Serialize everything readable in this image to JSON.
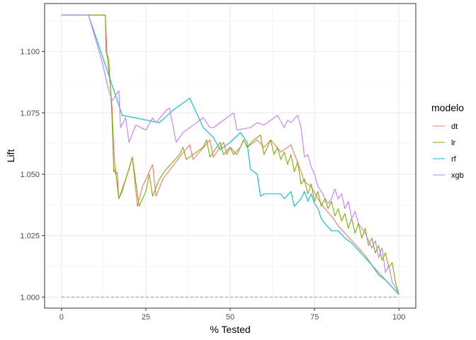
{
  "chart_data": {
    "type": "line",
    "title": "",
    "xlabel": "% Tested",
    "ylabel": "Lift",
    "xlim": [
      -5,
      105
    ],
    "ylim": [
      0.9955,
      1.1195
    ],
    "x_ticks": [
      0,
      25,
      50,
      75,
      100
    ],
    "x_tick_labels": [
      "0",
      "25",
      "50",
      "75",
      "100"
    ],
    "y_ticks": [
      1.0,
      1.025,
      1.05,
      1.075,
      1.1
    ],
    "y_tick_labels": [
      "1.000",
      "1.025",
      "1.050",
      "1.075",
      "1.100"
    ],
    "grid": true,
    "legend": {
      "title": "modelo",
      "position": "right"
    },
    "reference_line": {
      "y": 1.0,
      "style": "dashed",
      "color": "#999999"
    },
    "series": [
      {
        "name": "dt",
        "color": "#F8766D",
        "points": [
          [
            0,
            1.1148
          ],
          [
            13,
            1.1148
          ],
          [
            13.5,
            1.099
          ],
          [
            14,
            1.097
          ],
          [
            14.5,
            1.085
          ],
          [
            15,
            1.077
          ],
          [
            15.5,
            1.06
          ],
          [
            16,
            1.05
          ],
          [
            16.5,
            1.051
          ],
          [
            17,
            1.04
          ],
          [
            18,
            1.043
          ],
          [
            21,
            1.057
          ],
          [
            22.5,
            1.037
          ],
          [
            24,
            1.045
          ],
          [
            27,
            1.054
          ],
          [
            28,
            1.041
          ],
          [
            30,
            1.048
          ],
          [
            35,
            1.057
          ],
          [
            38,
            1.062
          ],
          [
            39,
            1.056
          ],
          [
            44,
            1.064
          ],
          [
            45,
            1.057
          ],
          [
            48,
            1.063
          ],
          [
            49,
            1.058
          ],
          [
            50,
            1.061
          ],
          [
            52,
            1.058
          ],
          [
            54,
            1.064
          ],
          [
            55,
            1.061
          ],
          [
            58,
            1.064
          ],
          [
            60,
            1.061
          ],
          [
            62,
            1.064
          ],
          [
            65,
            1.059
          ],
          [
            68,
            1.062
          ],
          [
            71,
            1.051
          ],
          [
            72,
            1.047
          ],
          [
            74,
            1.045
          ],
          [
            76,
            1.04
          ],
          [
            78,
            1.036
          ],
          [
            80,
            1.033
          ],
          [
            82,
            1.029
          ],
          [
            84,
            1.026
          ],
          [
            86,
            1.023
          ],
          [
            88,
            1.02
          ],
          [
            90,
            1.017
          ],
          [
            92,
            1.013
          ],
          [
            94,
            1.01
          ],
          [
            96,
            1.007
          ],
          [
            98,
            1.004
          ],
          [
            100,
            1.001
          ]
        ]
      },
      {
        "name": "lr",
        "color": "#7CAE00",
        "points": [
          [
            0,
            1.1148
          ],
          [
            13,
            1.1148
          ],
          [
            13.2,
            1.1
          ],
          [
            13.7,
            1.097
          ],
          [
            14,
            1.092
          ],
          [
            14.5,
            1.086
          ],
          [
            15,
            1.072
          ],
          [
            15.5,
            1.051
          ],
          [
            16,
            1.052
          ],
          [
            17,
            1.04
          ],
          [
            20,
            1.052
          ],
          [
            21,
            1.057
          ],
          [
            23,
            1.037
          ],
          [
            25,
            1.043
          ],
          [
            26,
            1.05
          ],
          [
            27,
            1.041
          ],
          [
            29,
            1.048
          ],
          [
            31,
            1.052
          ],
          [
            35,
            1.058
          ],
          [
            36,
            1.061
          ],
          [
            37,
            1.056
          ],
          [
            39,
            1.058
          ],
          [
            42,
            1.061
          ],
          [
            43,
            1.064
          ],
          [
            44,
            1.057
          ],
          [
            46,
            1.061
          ],
          [
            47,
            1.063
          ],
          [
            48,
            1.058
          ],
          [
            50,
            1.061
          ],
          [
            51,
            1.058
          ],
          [
            53,
            1.061
          ],
          [
            54,
            1.064
          ],
          [
            55,
            1.061
          ],
          [
            57,
            1.064
          ],
          [
            59,
            1.066
          ],
          [
            60,
            1.058
          ],
          [
            61,
            1.061
          ],
          [
            62,
            1.064
          ],
          [
            63,
            1.058
          ],
          [
            64,
            1.061
          ],
          [
            65,
            1.056
          ],
          [
            66,
            1.059
          ],
          [
            67,
            1.054
          ],
          [
            68,
            1.058
          ],
          [
            69,
            1.051
          ],
          [
            70,
            1.055
          ],
          [
            71,
            1.046
          ],
          [
            72,
            1.048
          ],
          [
            73,
            1.042
          ],
          [
            74,
            1.046
          ],
          [
            75,
            1.039
          ],
          [
            76,
            1.043
          ],
          [
            77,
            1.037
          ],
          [
            78,
            1.04
          ],
          [
            79,
            1.036
          ],
          [
            80,
            1.039
          ],
          [
            81,
            1.033
          ],
          [
            82,
            1.036
          ],
          [
            83,
            1.031
          ],
          [
            84,
            1.034
          ],
          [
            85,
            1.028
          ],
          [
            86,
            1.032
          ],
          [
            87,
            1.026
          ],
          [
            88,
            1.03
          ],
          [
            89,
            1.024
          ],
          [
            90,
            1.028
          ],
          [
            91,
            1.021
          ],
          [
            92,
            1.024
          ],
          [
            93,
            1.018
          ],
          [
            94,
            1.021
          ],
          [
            95,
            1.015
          ],
          [
            96,
            1.018
          ],
          [
            97,
            1.012
          ],
          [
            98,
            1.014
          ],
          [
            99,
            1.006
          ],
          [
            100,
            1.001
          ]
        ]
      },
      {
        "name": "rf",
        "color": "#00BFC4",
        "points": [
          [
            0,
            1.1148
          ],
          [
            8,
            1.1148
          ],
          [
            18,
            1.074
          ],
          [
            29,
            1.071
          ],
          [
            33,
            1.076
          ],
          [
            38,
            1.081
          ],
          [
            40,
            1.075
          ],
          [
            42,
            1.069
          ],
          [
            45,
            1.065
          ],
          [
            47,
            1.06
          ],
          [
            50,
            1.063
          ],
          [
            53,
            1.067
          ],
          [
            55,
            1.063
          ],
          [
            56,
            1.052
          ],
          [
            58,
            1.05
          ],
          [
            59,
            1.041
          ],
          [
            60,
            1.042
          ],
          [
            65,
            1.042
          ],
          [
            66,
            1.04
          ],
          [
            68,
            1.043
          ],
          [
            69,
            1.037
          ],
          [
            71,
            1.04
          ],
          [
            72,
            1.043
          ],
          [
            73,
            1.039
          ],
          [
            74,
            1.042
          ],
          [
            75,
            1.038
          ],
          [
            76,
            1.036
          ],
          [
            77,
            1.032
          ],
          [
            78,
            1.03
          ],
          [
            80,
            1.027
          ],
          [
            82,
            1.027
          ],
          [
            84,
            1.024
          ],
          [
            86,
            1.022
          ],
          [
            88,
            1.019
          ],
          [
            90,
            1.016
          ],
          [
            92,
            1.013
          ],
          [
            94,
            1.009
          ],
          [
            96,
            1.007
          ],
          [
            98,
            1.004
          ],
          [
            100,
            1.001
          ]
        ]
      },
      {
        "name": "xgb",
        "color": "#C77CFF",
        "points": [
          [
            0,
            1.1148
          ],
          [
            8,
            1.1148
          ],
          [
            12,
            1.096
          ],
          [
            14,
            1.084
          ],
          [
            15,
            1.08
          ],
          [
            17,
            1.084
          ],
          [
            17.5,
            1.069
          ],
          [
            19,
            1.073
          ],
          [
            20,
            1.063
          ],
          [
            22,
            1.07
          ],
          [
            25,
            1.068
          ],
          [
            27,
            1.073
          ],
          [
            28,
            1.071
          ],
          [
            31,
            1.076
          ],
          [
            32,
            1.077
          ],
          [
            34,
            1.063
          ],
          [
            36,
            1.067
          ],
          [
            40,
            1.071
          ],
          [
            42,
            1.073
          ],
          [
            44,
            1.069
          ],
          [
            45,
            1.069
          ],
          [
            49,
            1.073
          ],
          [
            51,
            1.075
          ],
          [
            52,
            1.068
          ],
          [
            56,
            1.069
          ],
          [
            58,
            1.071
          ],
          [
            60,
            1.07
          ],
          [
            64,
            1.074
          ],
          [
            66,
            1.069
          ],
          [
            67,
            1.072
          ],
          [
            68,
            1.071
          ],
          [
            70,
            1.074
          ],
          [
            71,
            1.069
          ],
          [
            72,
            1.057
          ],
          [
            73,
            1.058
          ],
          [
            74,
            1.053
          ],
          [
            75,
            1.05
          ],
          [
            76,
            1.045
          ],
          [
            77,
            1.043
          ],
          [
            79,
            1.038
          ],
          [
            80,
            1.04
          ],
          [
            81,
            1.044
          ],
          [
            82,
            1.04
          ],
          [
            83,
            1.042
          ],
          [
            84,
            1.036
          ],
          [
            85,
            1.039
          ],
          [
            86,
            1.032
          ],
          [
            87,
            1.035
          ],
          [
            88,
            1.03
          ],
          [
            89,
            1.028
          ],
          [
            90,
            1.026
          ],
          [
            91,
            1.023
          ],
          [
            92,
            1.02
          ],
          [
            93,
            1.023
          ],
          [
            94,
            1.016
          ],
          [
            95,
            1.02
          ],
          [
            96,
            1.01
          ],
          [
            97,
            1.013
          ],
          [
            98,
            1.006
          ],
          [
            99,
            1.004
          ],
          [
            100,
            1.001
          ]
        ]
      }
    ]
  }
}
